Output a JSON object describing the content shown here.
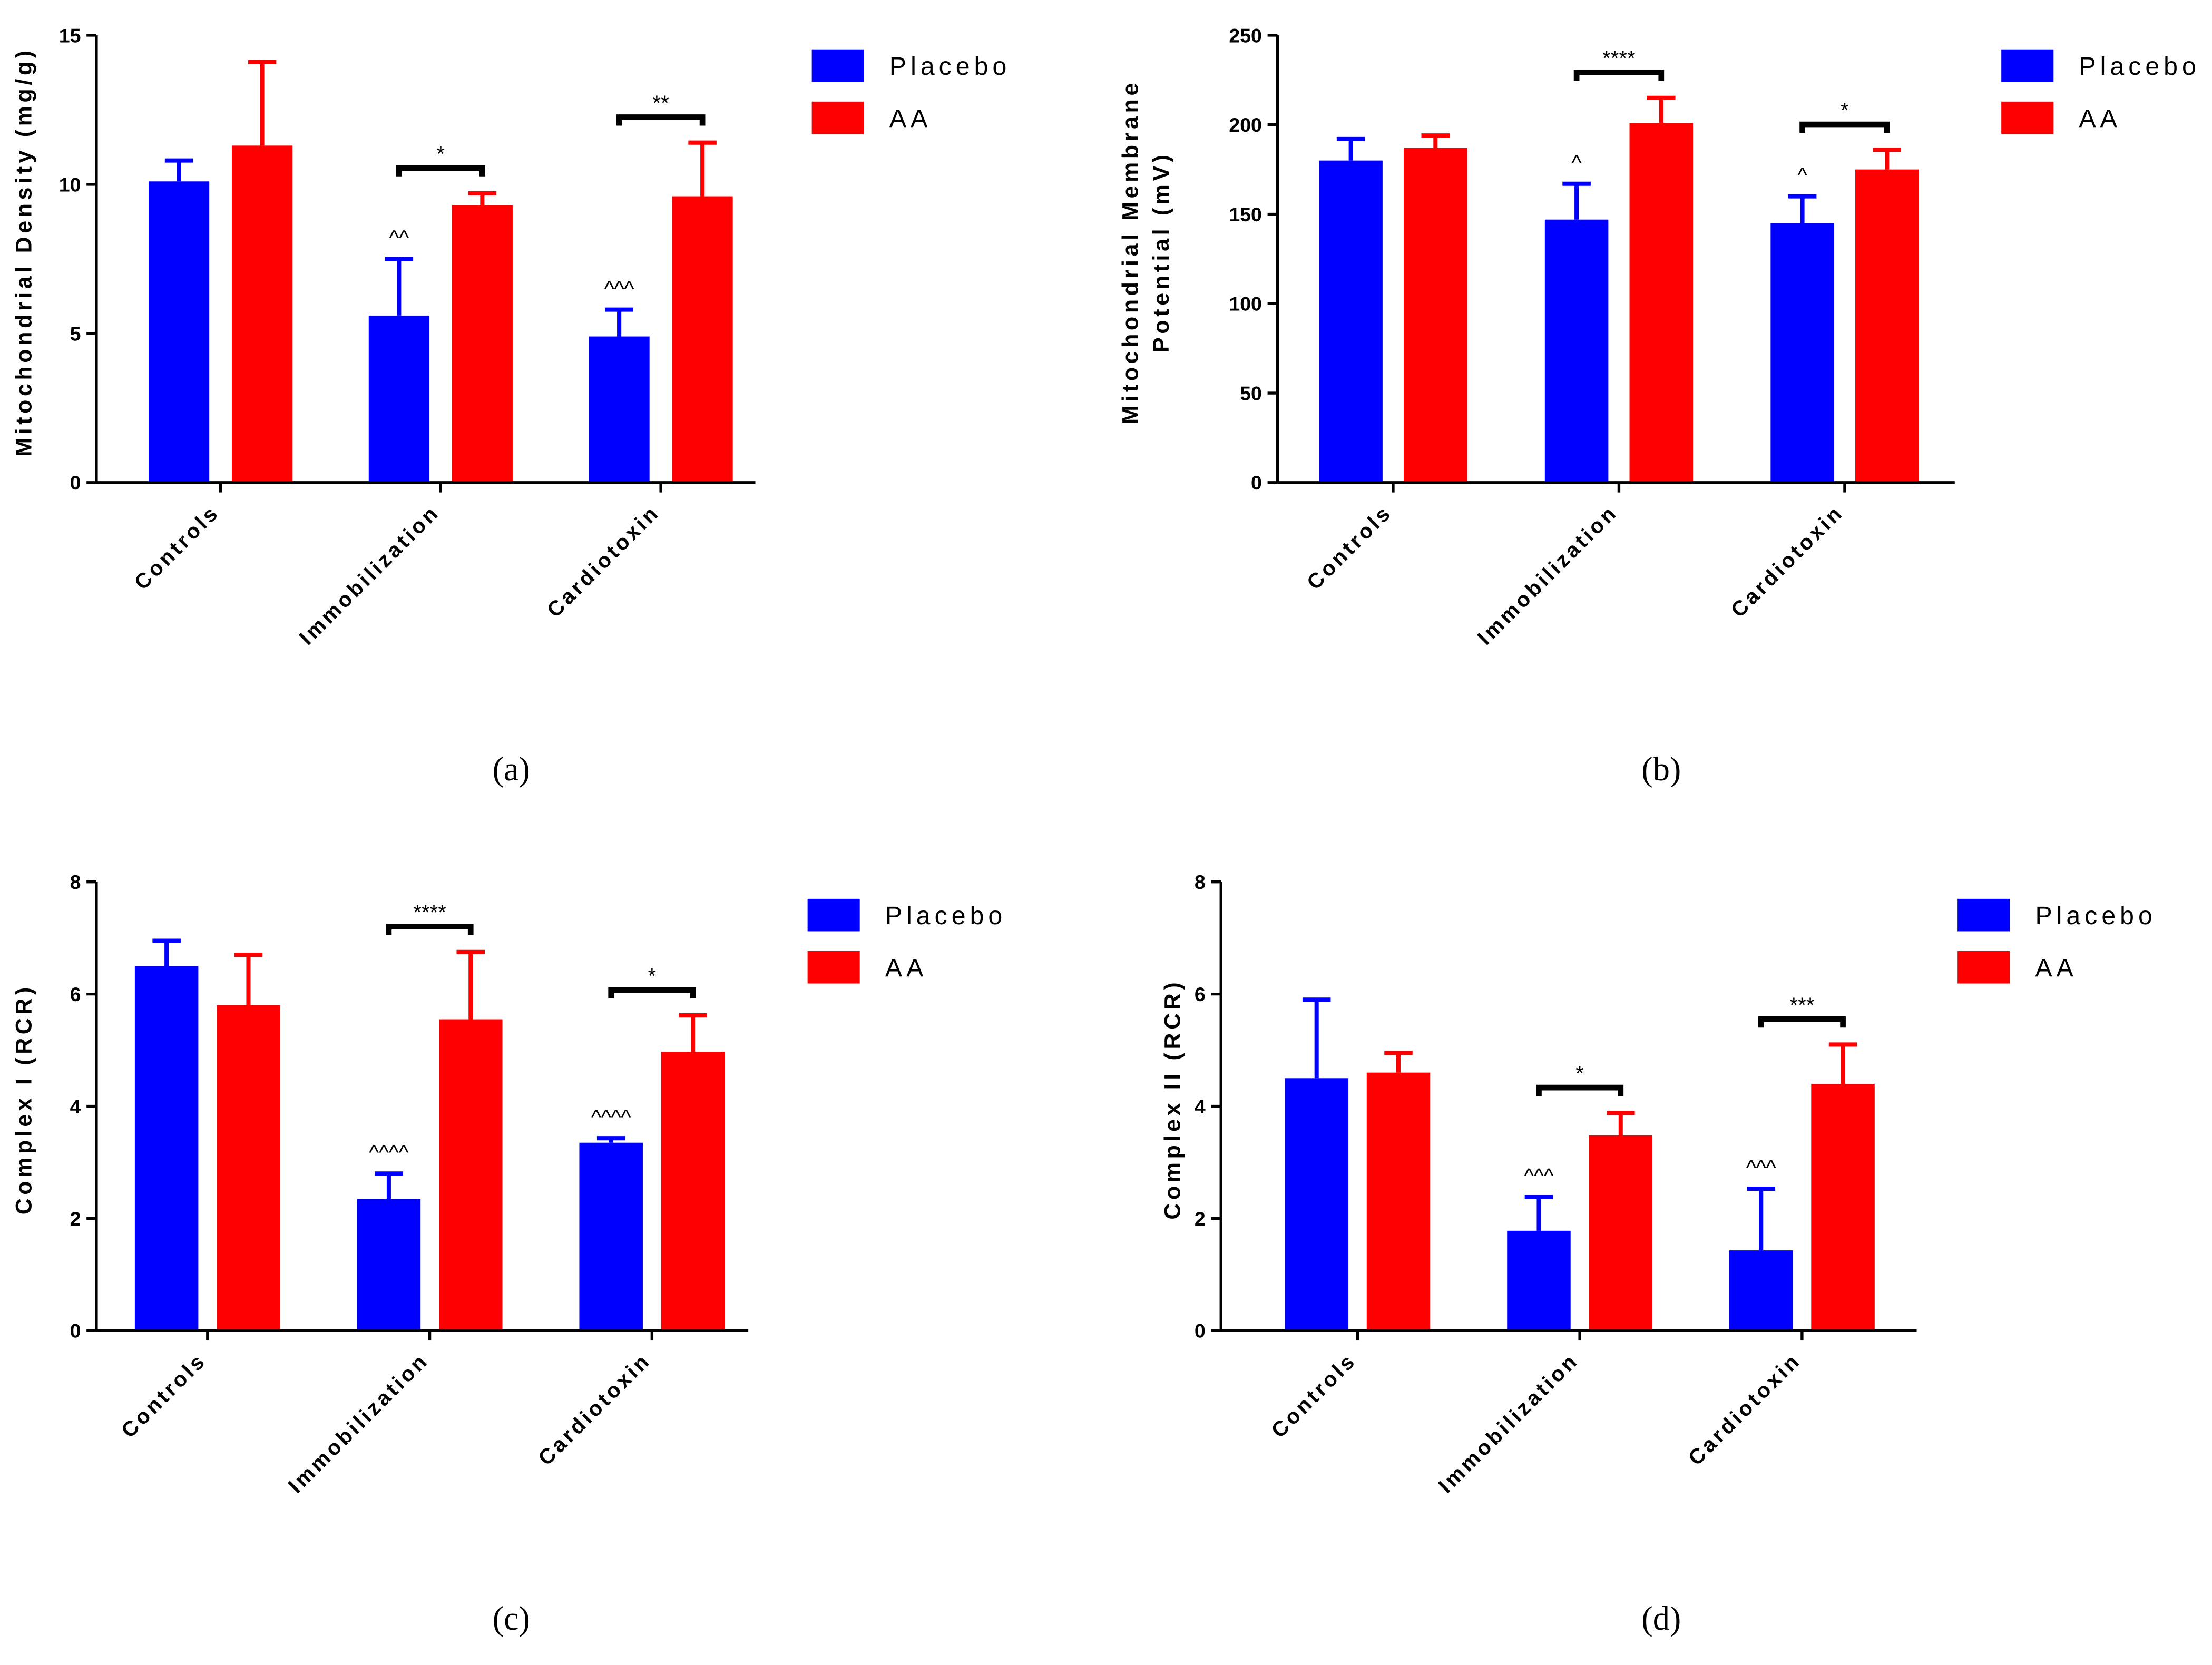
{
  "chart_data": [
    {
      "type": "bar",
      "panel_label": "(a)",
      "y_label": [
        "Mitochondrial Density (mg/g)"
      ],
      "categories": [
        "Controls",
        "Immobilization",
        "Cardiotoxin"
      ],
      "series": [
        {
          "name": "Placebo",
          "color": "#0000ff",
          "values": [
            10.1,
            5.6,
            4.9
          ],
          "errors": [
            0.7,
            1.9,
            0.9
          ]
        },
        {
          "name": "AA",
          "color": "#ff0000",
          "values": [
            11.3,
            9.3,
            9.6
          ],
          "errors": [
            2.8,
            0.4,
            1.8
          ]
        }
      ],
      "ylim": [
        0,
        15
      ],
      "yticks": [
        0,
        5,
        10,
        15
      ],
      "carets": [
        {
          "text": "^^",
          "category": 1
        },
        {
          "text": "^^^",
          "category": 2
        }
      ],
      "brackets": [
        {
          "text": "*",
          "category": 1
        },
        {
          "text": "**",
          "category": 2
        }
      ]
    },
    {
      "type": "bar",
      "panel_label": "(b)",
      "y_label": [
        "Mitochondrial Membrane",
        "Potential (mV)"
      ],
      "categories": [
        "Controls",
        "Immobilization",
        "Cardiotoxin"
      ],
      "series": [
        {
          "name": "Placebo",
          "color": "#0000ff",
          "values": [
            180,
            147,
            145
          ],
          "errors": [
            12,
            20,
            15
          ]
        },
        {
          "name": "AA",
          "color": "#ff0000",
          "values": [
            187,
            201,
            175
          ],
          "errors": [
            7,
            14,
            11
          ]
        }
      ],
      "ylim": [
        0,
        250
      ],
      "yticks": [
        0,
        50,
        100,
        150,
        200,
        250
      ],
      "carets": [
        {
          "text": "^",
          "category": 1
        },
        {
          "text": "^",
          "category": 2
        }
      ],
      "brackets": [
        {
          "text": "****",
          "category": 1
        },
        {
          "text": "*",
          "category": 2
        }
      ]
    },
    {
      "type": "bar",
      "panel_label": "(c)",
      "y_label": [
        "Complex I (RCR)"
      ],
      "categories": [
        "Controls",
        "Immobilization",
        "Cardiotoxin"
      ],
      "series": [
        {
          "name": "Placebo",
          "color": "#0000ff",
          "values": [
            6.5,
            2.35,
            3.35
          ],
          "errors": [
            0.45,
            0.45,
            0.08
          ]
        },
        {
          "name": "AA",
          "color": "#ff0000",
          "values": [
            5.8,
            5.55,
            4.97
          ],
          "errors": [
            0.9,
            1.2,
            0.65
          ]
        }
      ],
      "ylim": [
        0,
        8
      ],
      "yticks": [
        0,
        2,
        4,
        6,
        8
      ],
      "carets": [
        {
          "text": "^^^^",
          "category": 1
        },
        {
          "text": "^^^^",
          "category": 2
        }
      ],
      "brackets": [
        {
          "text": "****",
          "category": 1
        },
        {
          "text": "*",
          "category": 2
        }
      ]
    },
    {
      "type": "bar",
      "panel_label": "(d)",
      "y_label": [
        "Complex II (RCR)"
      ],
      "categories": [
        "Controls",
        "Immobilization",
        "Cardiotoxin"
      ],
      "series": [
        {
          "name": "Placebo",
          "color": "#0000ff",
          "values": [
            4.5,
            1.78,
            1.43
          ],
          "errors": [
            1.4,
            0.6,
            1.1
          ]
        },
        {
          "name": "AA",
          "color": "#ff0000",
          "values": [
            4.6,
            3.48,
            4.4
          ],
          "errors": [
            0.35,
            0.4,
            0.7
          ]
        }
      ],
      "ylim": [
        0,
        8
      ],
      "yticks": [
        0,
        2,
        4,
        6,
        8
      ],
      "carets": [
        {
          "text": "^^^",
          "category": 1
        },
        {
          "text": "^^^",
          "category": 2
        }
      ],
      "brackets": [
        {
          "text": "*",
          "category": 1
        },
        {
          "text": "***",
          "category": 2
        }
      ]
    }
  ]
}
